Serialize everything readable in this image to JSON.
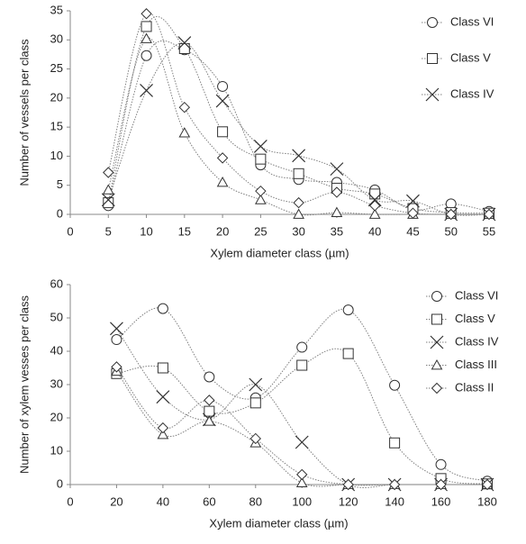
{
  "chart_data": [
    {
      "type": "line",
      "x_label": "Xylem diameter class (µm)",
      "y_label": "Number of vessels per class",
      "x": [
        5,
        10,
        15,
        20,
        25,
        30,
        35,
        40,
        45,
        50,
        55
      ],
      "xlim": [
        0,
        55
      ],
      "xticks": [
        0,
        5,
        10,
        15,
        20,
        25,
        30,
        35,
        40,
        45,
        50,
        55
      ],
      "ylim": [
        0,
        35
      ],
      "yticks": [
        0,
        5,
        10,
        15,
        20,
        25,
        30,
        35
      ],
      "legend": "upper right",
      "series": [
        {
          "name": "Class VI",
          "marker": "circle",
          "color": "#7f7f7f",
          "values": [
            1.5,
            27.3,
            28.3,
            22,
            8.5,
            6,
            5.5,
            4.2,
            0.8,
            1.8,
            0.5
          ]
        },
        {
          "name": "Class V",
          "marker": "square",
          "color": "#7f7f7f",
          "values": [
            2,
            32.3,
            28.5,
            14.2,
            9.5,
            7,
            4.5,
            3.5,
            1,
            0.3,
            0.2
          ]
        },
        {
          "name": "Class IV",
          "marker": "x",
          "color": "#7f7f7f",
          "values": [
            2.5,
            21.3,
            29.5,
            19.5,
            11.7,
            10.1,
            7.8,
            2.5,
            2.3,
            0,
            0
          ]
        },
        {
          "marker": "triangle",
          "color": "#7f7f7f",
          "values": [
            4.2,
            30.2,
            14,
            5.5,
            2.5,
            0,
            0.3,
            0,
            0,
            0,
            0
          ]
        },
        {
          "marker": "diamond",
          "color": "#7f7f7f",
          "values": [
            7.2,
            34.5,
            18.4,
            9.7,
            4,
            2,
            3.8,
            1.5,
            0.2,
            0,
            0
          ]
        }
      ]
    },
    {
      "type": "line",
      "x_label": "Xylem diameter class (µm)",
      "y_label": "Number of xylem vesses per class",
      "x": [
        20,
        40,
        60,
        80,
        100,
        120,
        140,
        160,
        180
      ],
      "xlim": [
        0,
        180
      ],
      "xticks": [
        0,
        20,
        40,
        60,
        80,
        100,
        120,
        140,
        160,
        180
      ],
      "ylim": [
        0,
        60
      ],
      "yticks": [
        0,
        10,
        20,
        30,
        40,
        50,
        60
      ],
      "legend": "upper right",
      "series": [
        {
          "name": "Class VI",
          "marker": "circle",
          "color": "#7f7f7f",
          "values": [
            43.5,
            52.8,
            32.3,
            26,
            41.2,
            52.4,
            29.8,
            6,
            1
          ]
        },
        {
          "name": "Class V",
          "marker": "square",
          "color": "#7f7f7f",
          "values": [
            33.3,
            35,
            22,
            24.5,
            35.8,
            39.3,
            12.5,
            1.8,
            0.2
          ]
        },
        {
          "name": "Class IV",
          "marker": "x",
          "color": "#7f7f7f",
          "values": [
            46.8,
            26.3,
            19.5,
            30,
            12.7,
            0,
            0,
            0,
            0
          ]
        },
        {
          "name": "Class III",
          "marker": "triangle",
          "color": "#7f7f7f",
          "values": [
            34,
            15,
            19,
            12.5,
            0.5,
            0,
            0,
            0,
            0
          ]
        },
        {
          "name": "Class II",
          "marker": "diamond",
          "color": "#7f7f7f",
          "values": [
            35.3,
            17,
            25.3,
            13.8,
            3,
            0,
            0,
            0,
            0
          ]
        }
      ]
    }
  ]
}
